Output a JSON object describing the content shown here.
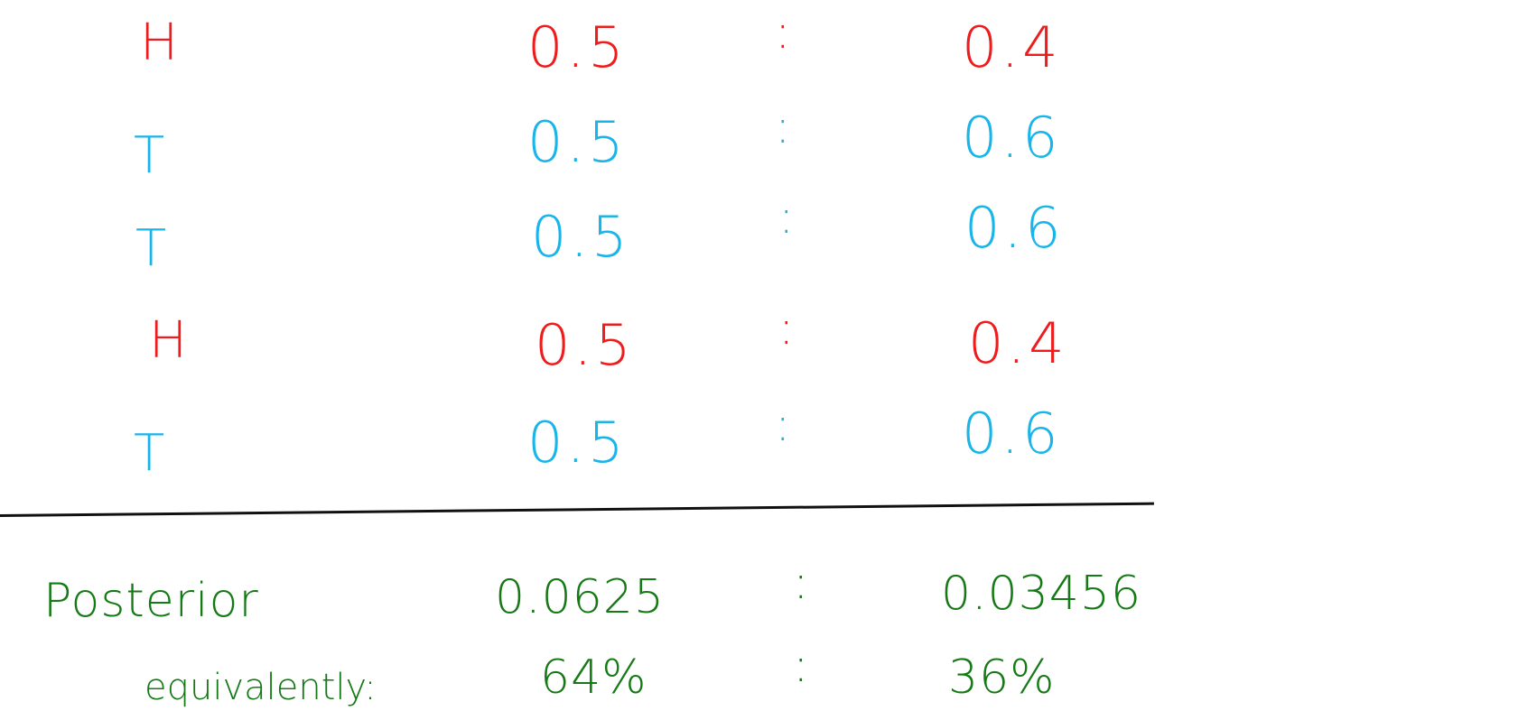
{
  "rows": [
    {
      "outcome": "H",
      "left": "0.5",
      "sep": ":",
      "right": "0.4",
      "color": "#ee1c1c"
    },
    {
      "outcome": "T",
      "left": "0.5",
      "sep": ":",
      "right": "0.6",
      "color": "#18b4ea"
    },
    {
      "outcome": "T",
      "left": "0.5",
      "sep": ":",
      "right": "0.6",
      "color": "#18b4ea"
    },
    {
      "outcome": "H",
      "left": "0.5",
      "sep": ":",
      "right": "0.4",
      "color": "#ee1c1c"
    },
    {
      "outcome": "T",
      "left": "0.5",
      "sep": ":",
      "right": "0.6",
      "color": "#18b4ea"
    }
  ],
  "posterior": {
    "label": "Posterior",
    "left": "0.0625",
    "sep": ":",
    "right": "0.03456",
    "equivalently_label": "equivalently:",
    "left_pct": "64%",
    "sep2": ":",
    "right_pct": "36%",
    "color": "#157a15"
  }
}
